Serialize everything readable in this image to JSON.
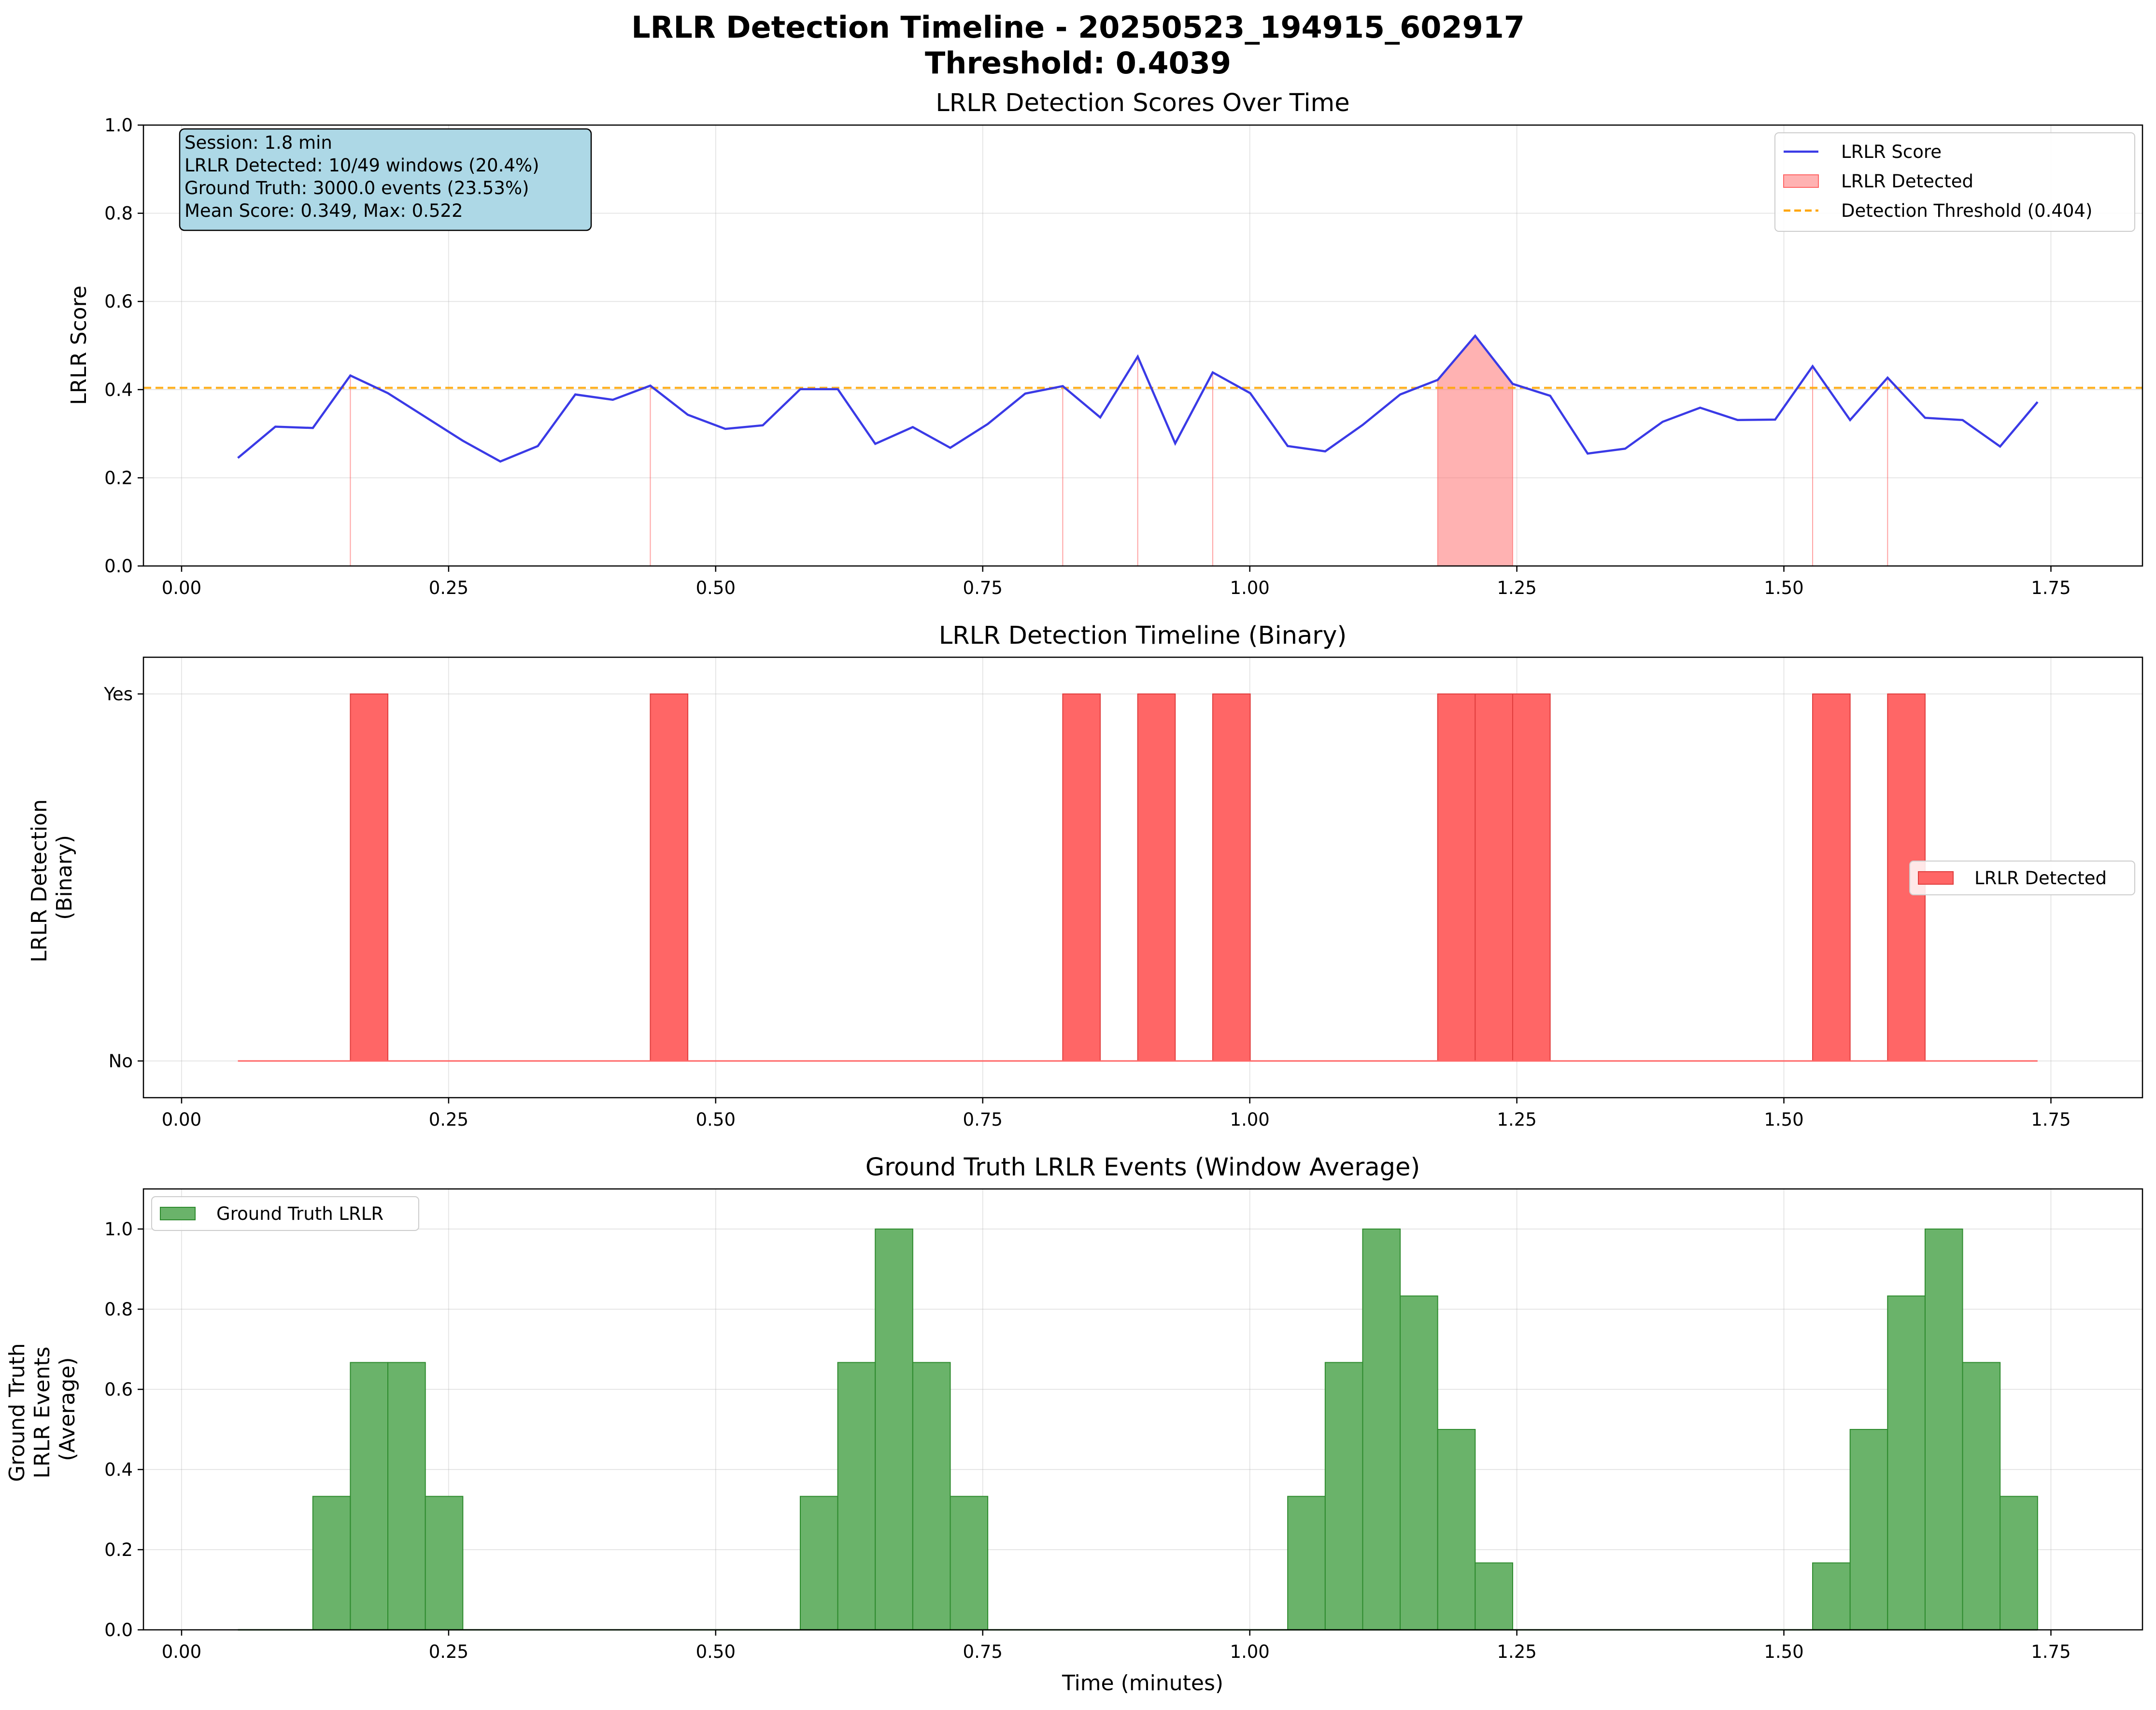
{
  "title_line1": "LRLR Detection Timeline - 20250523_194915_602917",
  "title_line2": "Threshold: 0.4039",
  "colors": {
    "score_line": "#3a3ae6",
    "detected_fill": "#ff6666",
    "threshold": "#ffa500",
    "ground_truth_fill": "#6ab36a",
    "ground_truth_edge": "#2e8b2e",
    "stats_box": "#add8e6"
  },
  "stats_box": {
    "line1": "Session: 1.8 min",
    "line2": "LRLR Detected: 10/49 windows (20.4%)",
    "line3": "Ground Truth: 3000.0 events (23.53%)",
    "line4": "Mean Score: 0.349, Max: 0.522"
  },
  "x_axis": {
    "label": "Time (minutes)",
    "ticks": [
      0.0,
      0.25,
      0.5,
      0.75,
      1.0,
      1.25,
      1.5,
      1.75
    ],
    "tick_labels": [
      "0.00",
      "0.25",
      "0.50",
      "0.75",
      "1.00",
      "1.25",
      "1.50",
      "1.75"
    ],
    "range": [
      -0.0357,
      1.8357
    ]
  },
  "chart_data": [
    {
      "type": "line",
      "title": "LRLR Detection Scores Over Time",
      "xlabel": "",
      "ylabel": "LRLR Score",
      "ylim": [
        0,
        1
      ],
      "y_ticks": [
        0.0,
        0.2,
        0.4,
        0.6,
        0.8,
        1.0
      ],
      "y_tick_labels": [
        "0.0",
        "0.2",
        "0.4",
        "0.6",
        "0.8",
        "1.0"
      ],
      "grid": true,
      "legend_position": "top-right",
      "threshold": 0.404,
      "x": [
        0.0527,
        0.0878,
        0.1229,
        0.158,
        0.1931,
        0.2282,
        0.2633,
        0.2984,
        0.3335,
        0.3686,
        0.4037,
        0.4388,
        0.4739,
        0.509,
        0.5441,
        0.5792,
        0.6143,
        0.6494,
        0.6845,
        0.7196,
        0.7547,
        0.7898,
        0.8249,
        0.86,
        0.8951,
        0.9302,
        0.9653,
        1.0004,
        1.0355,
        1.0706,
        1.1057,
        1.1408,
        1.1759,
        1.211,
        1.2461,
        1.2812,
        1.3163,
        1.3514,
        1.3865,
        1.4216,
        1.4567,
        1.4918,
        1.5269,
        1.562,
        1.5971,
        1.6322,
        1.6673,
        1.7024,
        1.7375
      ],
      "series": [
        {
          "name": "LRLR Score",
          "values": [
            0.245,
            0.316,
            0.313,
            0.432,
            0.392,
            0.338,
            0.284,
            0.237,
            0.272,
            0.389,
            0.377,
            0.409,
            0.343,
            0.311,
            0.319,
            0.401,
            0.401,
            0.277,
            0.315,
            0.268,
            0.322,
            0.391,
            0.408,
            0.337,
            0.475,
            0.278,
            0.439,
            0.392,
            0.272,
            0.26,
            0.32,
            0.389,
            0.422,
            0.522,
            0.413,
            0.386,
            0.255,
            0.266,
            0.327,
            0.359,
            0.331,
            0.332,
            0.453,
            0.331,
            0.427,
            0.336,
            0.331,
            0.271,
            0.372
          ]
        }
      ],
      "legend": [
        "LRLR Score",
        "LRLR Detected",
        "Detection Threshold (0.404)"
      ]
    },
    {
      "type": "area",
      "title": "LRLR Detection Timeline (Binary)",
      "xlabel": "",
      "ylabel": "LRLR Detection\n(Binary)",
      "ylim": [
        -0.1,
        1.1
      ],
      "y_ticks": [
        0,
        1
      ],
      "y_tick_labels": [
        "No",
        "Yes"
      ],
      "grid": true,
      "legend_position": "center-right",
      "legend": [
        "LRLR Detected"
      ],
      "detected": [
        0,
        0,
        0,
        1,
        0,
        0,
        0,
        0,
        0,
        0,
        0,
        1,
        0,
        0,
        0,
        0,
        0,
        0,
        0,
        0,
        0,
        0,
        1,
        0,
        1,
        0,
        1,
        0,
        0,
        0,
        0,
        0,
        1,
        1,
        1,
        0,
        0,
        0,
        0,
        0,
        0,
        0,
        1,
        0,
        1,
        0,
        0,
        0,
        0
      ]
    },
    {
      "type": "area",
      "title": "Ground Truth LRLR Events (Window Average)",
      "xlabel": "Time (minutes)",
      "ylabel": "Ground Truth\nLRLR Events\n(Average)",
      "ylim": [
        0,
        1.1
      ],
      "y_ticks": [
        0.0,
        0.2,
        0.4,
        0.6,
        0.8,
        1.0
      ],
      "y_tick_labels": [
        "0.0",
        "0.2",
        "0.4",
        "0.6",
        "0.8",
        "1.0"
      ],
      "grid": true,
      "legend_position": "top-left",
      "legend": [
        "Ground Truth LRLR"
      ],
      "values": [
        0,
        0,
        0.333,
        0.667,
        0.667,
        0.333,
        0,
        0,
        0,
        0,
        0,
        0,
        0,
        0,
        0,
        0.333,
        0.667,
        1.0,
        0.667,
        0.333,
        0,
        0,
        0,
        0,
        0,
        0,
        0,
        0,
        0.333,
        0.667,
        1.0,
        0.833,
        0.5,
        0.167,
        0,
        0,
        0,
        0,
        0,
        0,
        0,
        0,
        0.167,
        0.5,
        0.833,
        1.0,
        0.667,
        0.333,
        0
      ]
    }
  ]
}
